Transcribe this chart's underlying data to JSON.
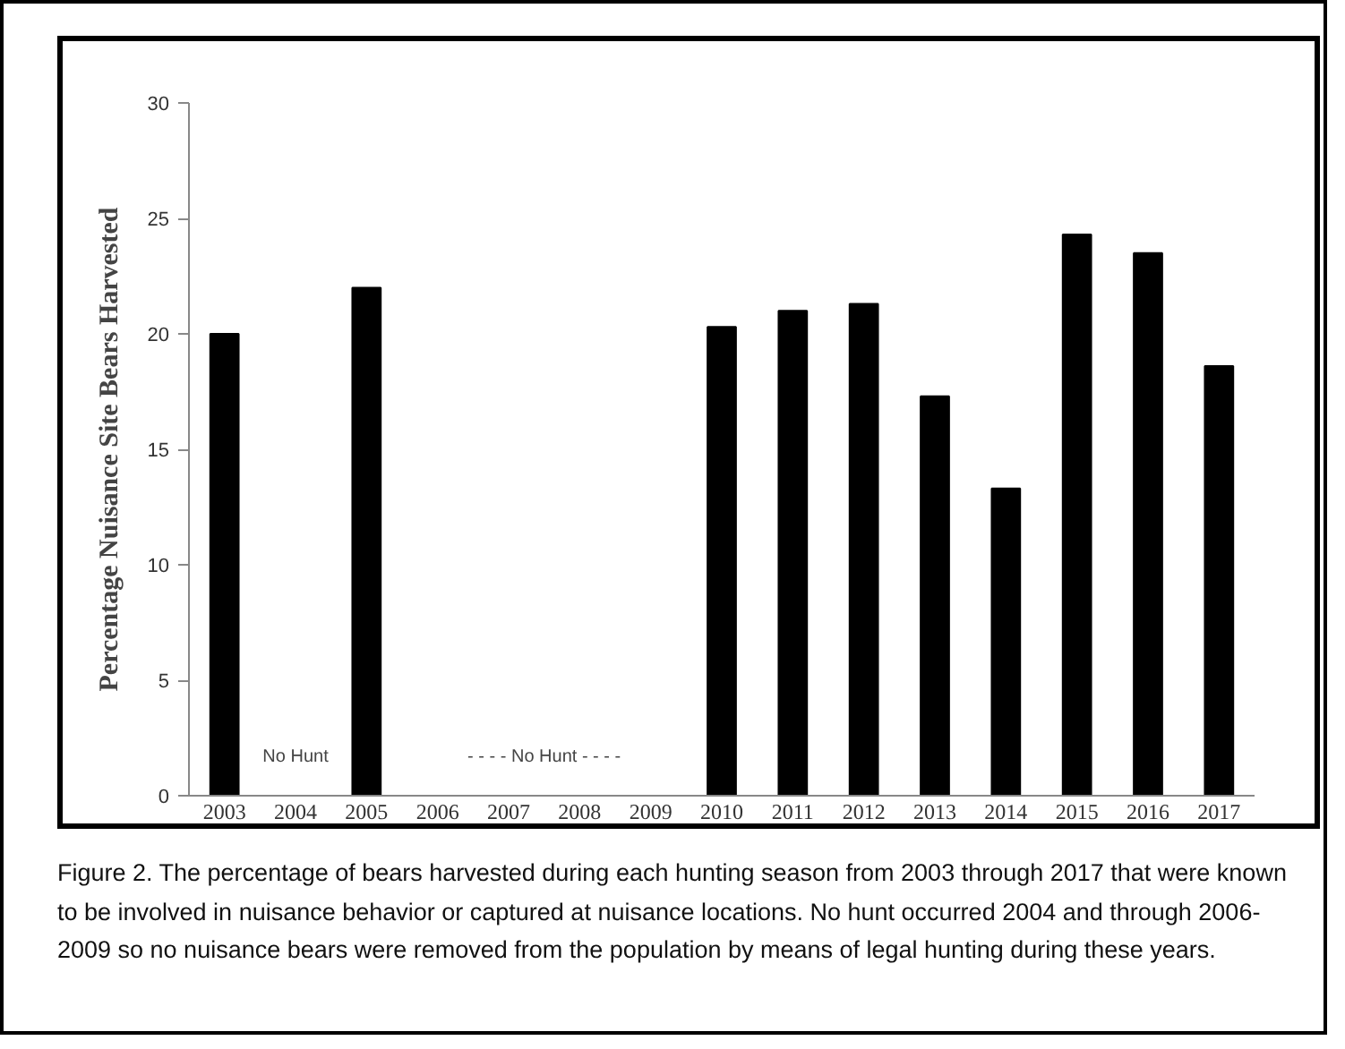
{
  "chart_data": {
    "type": "bar",
    "ylabel": "Percentage Nuisance Site Bears Harvested",
    "categories": [
      "2003",
      "2004",
      "2005",
      "2006",
      "2007",
      "2008",
      "2009",
      "2010",
      "2011",
      "2012",
      "2013",
      "2014",
      "2015",
      "2016",
      "2017"
    ],
    "values": [
      20,
      null,
      22,
      null,
      null,
      null,
      null,
      20.3,
      21,
      21.3,
      17.3,
      13.3,
      24.3,
      23.5,
      18.6
    ],
    "color": "#000000",
    "ylim": [
      0,
      30
    ],
    "yticks": [
      0,
      5,
      10,
      15,
      20,
      25,
      30
    ],
    "grid": false,
    "annotations": [
      "No Hunt",
      "- - - - No Hunt - - - -",
      "Figure 2. The percentage of bears harvested during each hunting season from 2003 through 2017 that were known to be involved in nuisance behavior or captured at nuisance locations. No hunt occurred 2004 and through 2006-2009 so no nuisance bears were removed from the population by means of legal hunting during these years."
    ]
  }
}
